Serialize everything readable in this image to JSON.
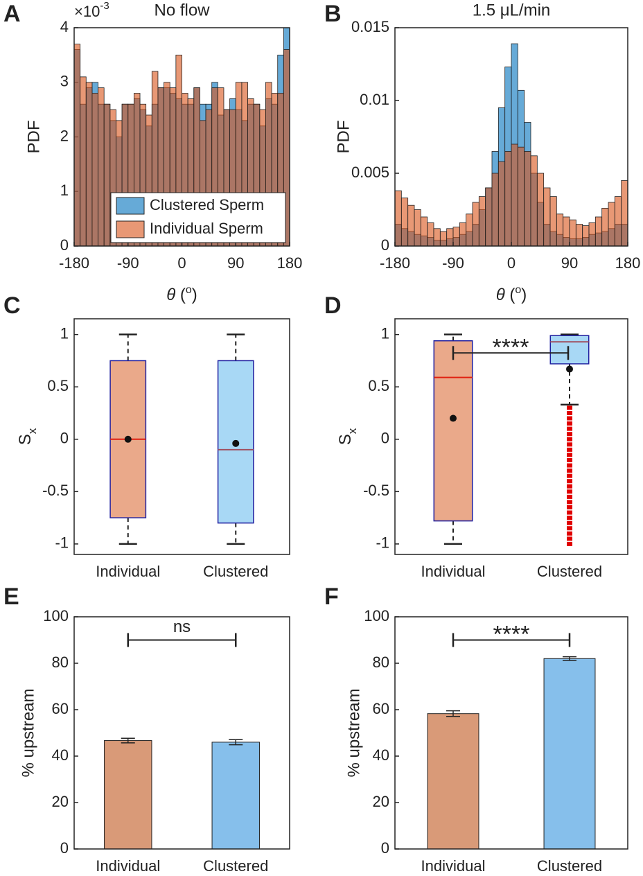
{
  "chart_data": [
    {
      "type": "histogram",
      "panel": "A",
      "title": "No flow",
      "exponent": [
        "×10",
        "-3"
      ],
      "ylabel": "PDF",
      "xlabel": [
        "θ",
        " (",
        "o",
        ")"
      ],
      "bins": [
        -180,
        -170,
        -160,
        -150,
        -140,
        -130,
        -120,
        -110,
        -100,
        -90,
        -80,
        -70,
        -60,
        -50,
        -40,
        -30,
        -20,
        -10,
        0,
        10,
        20,
        30,
        40,
        50,
        60,
        70,
        80,
        90,
        100,
        110,
        120,
        130,
        140,
        150,
        160,
        170,
        180
      ],
      "series": [
        {
          "name": "Clustered Sperm",
          "color": "#0072bd",
          "values": [
            3.6,
            2.6,
            2.9,
            3.0,
            2.6,
            2.6,
            2.3,
            2.0,
            2.6,
            2.6,
            2.7,
            2.5,
            2.2,
            2.6,
            2.9,
            2.9,
            2.8,
            2.7,
            2.6,
            2.6,
            2.9,
            2.6,
            2.6,
            3.0,
            2.4,
            2.5,
            2.7,
            2.5,
            2.3,
            2.6,
            2.6,
            2.2,
            2.7,
            2.6,
            3.5,
            4.0
          ]
        },
        {
          "name": "Individual Sperm",
          "color": "#d95319",
          "values": [
            3.7,
            3.1,
            3.0,
            2.8,
            2.9,
            2.6,
            2.5,
            2.3,
            2.6,
            2.6,
            2.8,
            2.6,
            2.4,
            3.2,
            2.9,
            3.0,
            2.9,
            3.5,
            2.8,
            2.7,
            2.9,
            2.3,
            2.5,
            2.9,
            2.9,
            2.5,
            2.5,
            3.0,
            3.0,
            2.7,
            2.6,
            2.5,
            3.0,
            2.8,
            2.8,
            3.6
          ]
        }
      ],
      "alpha": 0.6,
      "xlim": [
        -180,
        180
      ],
      "xticks": [
        -180,
        -90,
        0,
        90,
        180
      ],
      "ylim": [
        0,
        4
      ],
      "yticks": [
        0,
        1,
        2,
        3,
        4
      ],
      "legend": "lower right"
    },
    {
      "type": "histogram",
      "panel": "B",
      "title": "1.5 μL/min",
      "ylabel": "PDF",
      "xlabel": [
        "θ",
        " (",
        "o",
        ")"
      ],
      "bins": [
        -180,
        -170,
        -160,
        -150,
        -140,
        -130,
        -120,
        -110,
        -100,
        -90,
        -80,
        -70,
        -60,
        -50,
        -40,
        -30,
        -20,
        -10,
        0,
        10,
        20,
        30,
        40,
        50,
        60,
        70,
        80,
        90,
        100,
        110,
        120,
        130,
        140,
        150,
        160,
        170,
        180
      ],
      "series": [
        {
          "name": "Clustered Sperm",
          "color": "#0072bd",
          "values": [
            0.0015,
            0.0012,
            0.001,
            0.0008,
            0.0007,
            0.0006,
            0.0004,
            0.0004,
            0.0005,
            0.0006,
            0.0008,
            0.001,
            0.0015,
            0.0025,
            0.004,
            0.0065,
            0.0095,
            0.0123,
            0.0139,
            0.0107,
            0.0085,
            0.005,
            0.003,
            0.0015,
            0.001,
            0.0008,
            0.0006,
            0.0005,
            0.0005,
            0.0006,
            0.0008,
            0.0009,
            0.001,
            0.0012,
            0.0015,
            0.0015
          ]
        },
        {
          "name": "Individual Sperm",
          "color": "#d95319",
          "values": [
            0.0038,
            0.0033,
            0.0028,
            0.0025,
            0.002,
            0.0016,
            0.0012,
            0.001,
            0.0012,
            0.0013,
            0.0016,
            0.0022,
            0.003,
            0.0034,
            0.004,
            0.005,
            0.0058,
            0.0065,
            0.007,
            0.0068,
            0.0065,
            0.0062,
            0.005,
            0.004,
            0.0034,
            0.0022,
            0.002,
            0.0018,
            0.0015,
            0.0014,
            0.0016,
            0.002,
            0.0026,
            0.003,
            0.0034,
            0.0045
          ]
        }
      ],
      "alpha": 0.6,
      "xlim": [
        -180,
        180
      ],
      "xticks": [
        -180,
        -90,
        0,
        90,
        180
      ],
      "ylim": [
        0,
        0.015
      ],
      "yticks": [
        0,
        0.005,
        0.01,
        0.015
      ]
    },
    {
      "type": "box",
      "panel": "C",
      "ylabel": [
        "S",
        "x"
      ],
      "categories": [
        "Individual",
        "Clustered"
      ],
      "colors": [
        "#eaa98a",
        "#a8d8f5"
      ],
      "median_colors": [
        "#e02010",
        "#a05060"
      ],
      "boxes": [
        {
          "whisker_low": -1,
          "q1": -0.75,
          "median": 0,
          "q3": 0.75,
          "whisker_high": 1,
          "mean": 0.0,
          "outliers": []
        },
        {
          "whisker_low": -1,
          "q1": -0.8,
          "median": -0.1,
          "q3": 0.75,
          "whisker_high": 1,
          "mean": -0.04,
          "outliers": []
        }
      ],
      "ylim": [
        -1.1,
        1.15
      ],
      "yticks": [
        -1,
        -0.5,
        0,
        0.5,
        1
      ]
    },
    {
      "type": "box",
      "panel": "D",
      "ylabel": [
        "S",
        "x"
      ],
      "categories": [
        "Individual",
        "Clustered"
      ],
      "colors": [
        "#eaa98a",
        "#a8d8f5"
      ],
      "median_colors": [
        "#e02010",
        "#a05060"
      ],
      "boxes": [
        {
          "whisker_low": -1,
          "q1": -0.78,
          "median": 0.59,
          "q3": 0.94,
          "whisker_high": 1,
          "mean": 0.2,
          "outliers": []
        },
        {
          "whisker_low": 0.33,
          "q1": 0.72,
          "median": 0.93,
          "q3": 0.99,
          "whisker_high": 1,
          "mean": 0.67,
          "outliers": [
            0.3,
            0.25,
            0.2,
            0.15,
            0.1,
            0.05,
            0,
            -0.05,
            -0.1,
            -0.15,
            -0.2,
            -0.25,
            -0.3,
            -0.35,
            -0.4,
            -0.45,
            -0.5,
            -0.55,
            -0.6,
            -0.65,
            -0.7,
            -0.75,
            -0.8,
            -0.85,
            -0.9,
            -0.95,
            -1
          ]
        }
      ],
      "annotation": "****",
      "ylim": [
        -1.1,
        1.15
      ],
      "yticks": [
        -1,
        -0.5,
        0,
        0.5,
        1
      ]
    },
    {
      "type": "bar",
      "panel": "E",
      "ylabel": "% upstream",
      "categories": [
        "Individual",
        "Clustered"
      ],
      "values": [
        46.7,
        46.0
      ],
      "errors": [
        1.0,
        1.1
      ],
      "colors": [
        "#d99a78",
        "#86bfeb"
      ],
      "annotation": "ns",
      "ylim": [
        0,
        100
      ],
      "yticks": [
        0,
        20,
        40,
        60,
        80,
        100
      ]
    },
    {
      "type": "bar",
      "panel": "F",
      "ylabel": "% upstream",
      "categories": [
        "Individual",
        "Clustered"
      ],
      "values": [
        58.3,
        82.0
      ],
      "errors": [
        1.2,
        0.8
      ],
      "colors": [
        "#d99a78",
        "#86bfeb"
      ],
      "annotation": "****",
      "ylim": [
        0,
        100
      ],
      "yticks": [
        0,
        20,
        40,
        60,
        80,
        100
      ]
    }
  ]
}
